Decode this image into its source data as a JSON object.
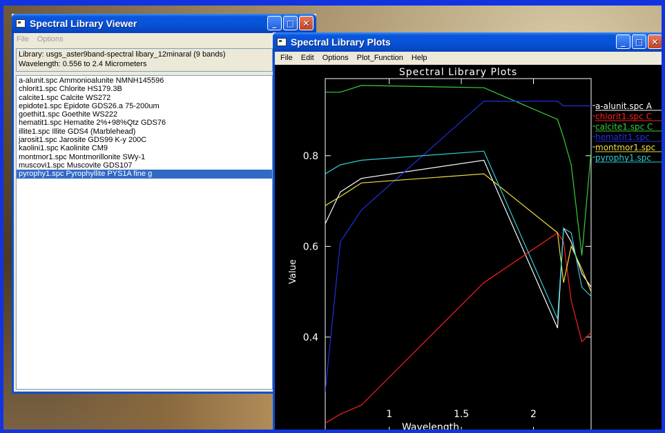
{
  "viewer": {
    "title": "Spectral Library Viewer",
    "menu": [
      "File",
      "Options"
    ],
    "library_line": "Library: usgs_aster9band-spectral libary_12minaral (9 bands)",
    "wavelength_line": "Wavelength: 0.556 to 2.4 Micrometers",
    "files": [
      "a-alunit.spc Ammonioalunite NMNH145596",
      "chlorit1.spc Chlorite HS179.3B",
      "calcite1.spc Calcite WS272",
      "epidote1.spc Epidote GDS26.a 75-200um",
      "goethit1.spc Goethite WS222",
      "hematit1.spc Hematite 2%+98%Qtz GDS76",
      "illite1.spc Illite GDS4 (Marblehead)",
      "jarosit1.spc Jarosite GDS99 K-y 200C",
      "kaolini1.spc Kaolinite CM9",
      "montmor1.spc Montmorillonite SWy-1",
      "muscovi1.spc Muscovite GDS107",
      "pyrophy1.spc Pyrophyllite PYS1A fine g"
    ],
    "selected_index": 11
  },
  "plots": {
    "title": "Spectral Library Plots",
    "menu": [
      "File",
      "Edit",
      "Options",
      "Plot_Function",
      "Help"
    ]
  },
  "window_buttons": {
    "minimize": "_",
    "maximize": "□",
    "close": "✕"
  },
  "chart_data": {
    "type": "line",
    "title": "Spectral Library Plots",
    "xlabel": "Wavelength",
    "ylabel": "Value",
    "xlim": [
      0.556,
      2.4
    ],
    "ylim": [
      0.19,
      0.97
    ],
    "xticks": [
      1.0,
      1.5,
      2.0
    ],
    "yticks": [
      0.4,
      0.6,
      0.8
    ],
    "background": "#000000",
    "axis_color": "#ffffff",
    "legend_position": "right",
    "series": [
      {
        "name": "a-alunit.spc A",
        "color": "#ffffff",
        "x": [
          0.556,
          0.661,
          0.807,
          1.656,
          2.167,
          2.209,
          2.262,
          2.336,
          2.4
        ],
        "y": [
          0.65,
          0.72,
          0.75,
          0.79,
          0.42,
          0.64,
          0.61,
          0.54,
          0.51
        ]
      },
      {
        "name": "chlorit1.spc C",
        "color": "#ff2020",
        "x": [
          0.556,
          0.661,
          0.807,
          1.656,
          2.167,
          2.209,
          2.262,
          2.336,
          2.4
        ],
        "y": [
          0.21,
          0.23,
          0.25,
          0.52,
          0.63,
          0.61,
          0.48,
          0.39,
          0.41
        ]
      },
      {
        "name": "calcite1.spc C",
        "color": "#3ad03a",
        "x": [
          0.556,
          0.661,
          0.807,
          1.656,
          2.167,
          2.209,
          2.262,
          2.336,
          2.4
        ],
        "y": [
          0.94,
          0.94,
          0.955,
          0.95,
          0.88,
          0.84,
          0.78,
          0.58,
          0.81
        ]
      },
      {
        "name": "hematit1.spc",
        "color": "#2030e0",
        "x": [
          0.556,
          0.661,
          0.807,
          1.656,
          2.167,
          2.209,
          2.262,
          2.336,
          2.4
        ],
        "y": [
          0.28,
          0.61,
          0.68,
          0.92,
          0.92,
          0.91,
          0.91,
          0.91,
          0.91
        ]
      },
      {
        "name": "montmor1.spc",
        "color": "#f0e040",
        "x": [
          0.556,
          0.661,
          0.807,
          1.656,
          2.167,
          2.209,
          2.262,
          2.336,
          2.4
        ],
        "y": [
          0.69,
          0.71,
          0.74,
          0.76,
          0.63,
          0.52,
          0.6,
          0.55,
          0.5
        ]
      },
      {
        "name": "pyrophy1.spc",
        "color": "#30d0d8",
        "x": [
          0.556,
          0.661,
          0.807,
          1.656,
          2.167,
          2.209,
          2.262,
          2.336,
          2.4
        ],
        "y": [
          0.76,
          0.78,
          0.79,
          0.81,
          0.44,
          0.64,
          0.63,
          0.51,
          0.49
        ]
      }
    ]
  }
}
